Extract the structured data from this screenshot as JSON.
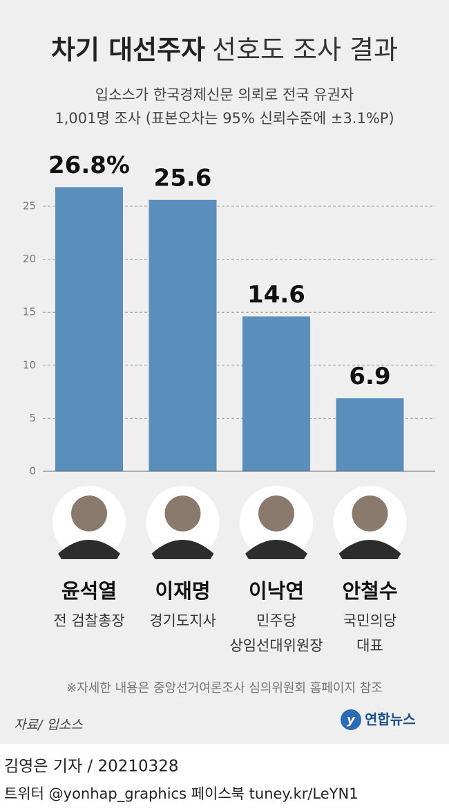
{
  "chart_data": {
    "type": "bar",
    "title": [
      "차기 대선주자",
      "선호도 조사 결과"
    ],
    "subtitle": [
      "입소스가 한국경제신문 의뢰로 전국 유권자",
      "1,001명 조사 (표본오차는 95% 신뢰수준에 ±3.1%P)"
    ],
    "categories": [
      "윤석열",
      "이재명",
      "이낙연",
      "안철수"
    ],
    "roles": [
      [
        "전 검찰총장"
      ],
      [
        "경기도지사"
      ],
      [
        "민주당",
        "상임선대위원장"
      ],
      [
        "국민의당",
        "대표"
      ]
    ],
    "values": [
      26.8,
      25.6,
      14.6,
      6.9
    ],
    "value_labels": [
      "26.8%",
      "25.6",
      "14.6",
      "6.9"
    ],
    "color": "#5a8fbb",
    "ylim": [
      0,
      28
    ],
    "yticks": [
      0,
      5,
      10,
      15,
      20,
      25
    ],
    "grid": true
  },
  "note": "※자세한 내용은 중앙선거여론조사 심의위원회 홈페이지 참조",
  "source": "자료/ 입소스",
  "logo": "연합뉴스",
  "byline": "김영은 기자 / 20210328",
  "social": "트위터 @yonhap_graphics  페이스북 tuney.kr/LeYN1"
}
